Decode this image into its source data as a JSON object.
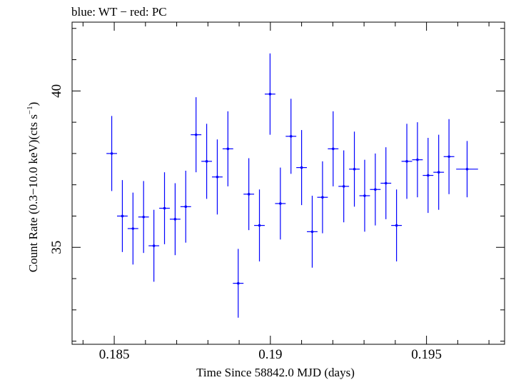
{
  "chart_data": {
    "type": "scatter",
    "title": "blue: WT − red: PC",
    "xlabel": "Time Since 58842.0 MJD (days)",
    "ylabel": "Count Rate (0.3−10.0 keV)(cts s",
    "ylabel_sup": "−1",
    "ylabel_tail": ")",
    "xlim": [
      0.18365,
      0.1975
    ],
    "ylim": [
      31.9,
      42.2
    ],
    "x_ticks": [
      0.185,
      0.19,
      0.195
    ],
    "x_tick_labels": [
      "0.185",
      "0.19",
      "0.195"
    ],
    "y_ticks": [
      35,
      40
    ],
    "y_tick_labels": [
      "35",
      "40"
    ],
    "grid": false,
    "series": [
      {
        "color": "#0000ff",
        "xerr": 0.00017,
        "points": [
          {
            "x": 0.18492,
            "y": 38.0,
            "yerr": 1.2
          },
          {
            "x": 0.18526,
            "y": 36.0,
            "yerr": 1.15
          },
          {
            "x": 0.1856,
            "y": 35.6,
            "yerr": 1.15
          },
          {
            "x": 0.18594,
            "y": 35.97,
            "yerr": 1.15
          },
          {
            "x": 0.18627,
            "y": 35.05,
            "yerr": 1.15
          },
          {
            "x": 0.18661,
            "y": 36.25,
            "yerr": 1.15
          },
          {
            "x": 0.18695,
            "y": 35.9,
            "yerr": 1.15
          },
          {
            "x": 0.18729,
            "y": 36.3,
            "yerr": 1.15
          },
          {
            "x": 0.18762,
            "y": 38.6,
            "yerr": 1.2
          },
          {
            "x": 0.18796,
            "y": 37.75,
            "yerr": 1.2
          },
          {
            "x": 0.1883,
            "y": 37.25,
            "yerr": 1.2
          },
          {
            "x": 0.18864,
            "y": 38.15,
            "yerr": 1.2
          },
          {
            "x": 0.18897,
            "y": 33.85,
            "yerr": 1.1
          },
          {
            "x": 0.18931,
            "y": 36.7,
            "yerr": 1.15
          },
          {
            "x": 0.18965,
            "y": 35.7,
            "yerr": 1.15
          },
          {
            "x": 0.18999,
            "y": 39.9,
            "yerr": 1.3
          },
          {
            "x": 0.19032,
            "y": 36.4,
            "yerr": 1.15
          },
          {
            "x": 0.19066,
            "y": 38.55,
            "yerr": 1.2
          },
          {
            "x": 0.191,
            "y": 37.55,
            "yerr": 1.2
          },
          {
            "x": 0.19134,
            "y": 35.5,
            "yerr": 1.15
          },
          {
            "x": 0.19167,
            "y": 36.6,
            "yerr": 1.15
          },
          {
            "x": 0.19201,
            "y": 38.15,
            "yerr": 1.2
          },
          {
            "x": 0.19235,
            "y": 36.95,
            "yerr": 1.15
          },
          {
            "x": 0.19269,
            "y": 37.5,
            "yerr": 1.2
          },
          {
            "x": 0.19302,
            "y": 36.65,
            "yerr": 1.15
          },
          {
            "x": 0.19336,
            "y": 36.85,
            "yerr": 1.15
          },
          {
            "x": 0.1937,
            "y": 37.05,
            "yerr": 1.15
          },
          {
            "x": 0.19404,
            "y": 35.7,
            "yerr": 1.15
          },
          {
            "x": 0.19437,
            "y": 37.75,
            "yerr": 1.2
          },
          {
            "x": 0.19471,
            "y": 37.8,
            "yerr": 1.2
          },
          {
            "x": 0.19505,
            "y": 37.3,
            "yerr": 1.2
          },
          {
            "x": 0.19539,
            "y": 37.4,
            "yerr": 1.2
          },
          {
            "x": 0.19572,
            "y": 37.9,
            "yerr": 1.2
          },
          {
            "x": 0.1963,
            "y": 37.5,
            "yerr": 0.9,
            "xerr": 0.00035
          }
        ]
      }
    ]
  }
}
